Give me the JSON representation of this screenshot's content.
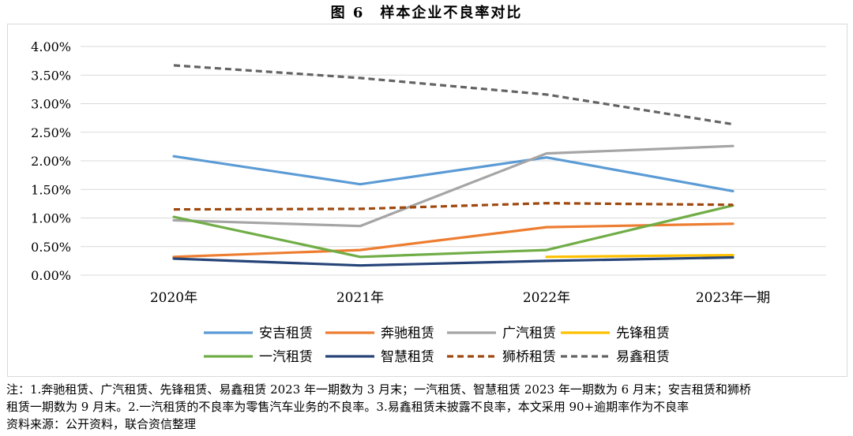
{
  "title": "图 6　样本企业不良率对比",
  "chart_data": {
    "type": "line",
    "title": "图 6　样本企业不良率对比",
    "categories": [
      "2020年",
      "2021年",
      "2022年",
      "2023年一期"
    ],
    "y_ticks": [
      "0.00%",
      "0.50%",
      "1.00%",
      "1.50%",
      "2.00%",
      "2.50%",
      "3.00%",
      "3.50%",
      "4.00%"
    ],
    "ylim": [
      0,
      4
    ],
    "grid": true,
    "legend_position": "bottom",
    "series": [
      {
        "name": "安吉租赁",
        "color": "#5b9bd5",
        "dash": false,
        "values": [
          2.08,
          1.59,
          2.06,
          1.47
        ]
      },
      {
        "name": "奔驰租赁",
        "color": "#ed7d31",
        "dash": false,
        "values": [
          0.32,
          0.44,
          0.84,
          0.9
        ]
      },
      {
        "name": "广汽租赁",
        "color": "#a5a5a5",
        "dash": false,
        "values": [
          0.96,
          0.86,
          2.13,
          2.26
        ]
      },
      {
        "name": "先锋租赁",
        "color": "#ffc000",
        "dash": false,
        "values": [
          null,
          null,
          0.32,
          0.35
        ]
      },
      {
        "name": "一汽租赁",
        "color": "#70ad47",
        "dash": false,
        "values": [
          1.02,
          0.32,
          0.44,
          1.22
        ]
      },
      {
        "name": "智慧租赁",
        "color": "#264478",
        "dash": false,
        "values": [
          0.29,
          0.17,
          0.25,
          0.31
        ]
      },
      {
        "name": "狮桥租赁",
        "color": "#9e480e",
        "dash": true,
        "values": [
          1.15,
          1.16,
          1.26,
          1.23
        ]
      },
      {
        "name": "易鑫租赁",
        "color": "#636363",
        "dash": true,
        "values": [
          3.67,
          3.45,
          3.16,
          2.64
        ]
      }
    ]
  },
  "notes": [
    "注：1.奔驰租赁、广汽租赁、先锋租赁、易鑫租赁 2023 年一期数为 3 月末；一汽租赁、智慧租赁 2023 年一期数为 6 月末；安吉租赁和狮桥",
    "租赁一期数为 9 月末。2.一汽租赁的不良率为零售汽车业务的不良率。3.易鑫租赁未披露不良率，本文采用 90+逾期率作为不良率",
    "资料来源：公开资料，联合资信整理"
  ]
}
